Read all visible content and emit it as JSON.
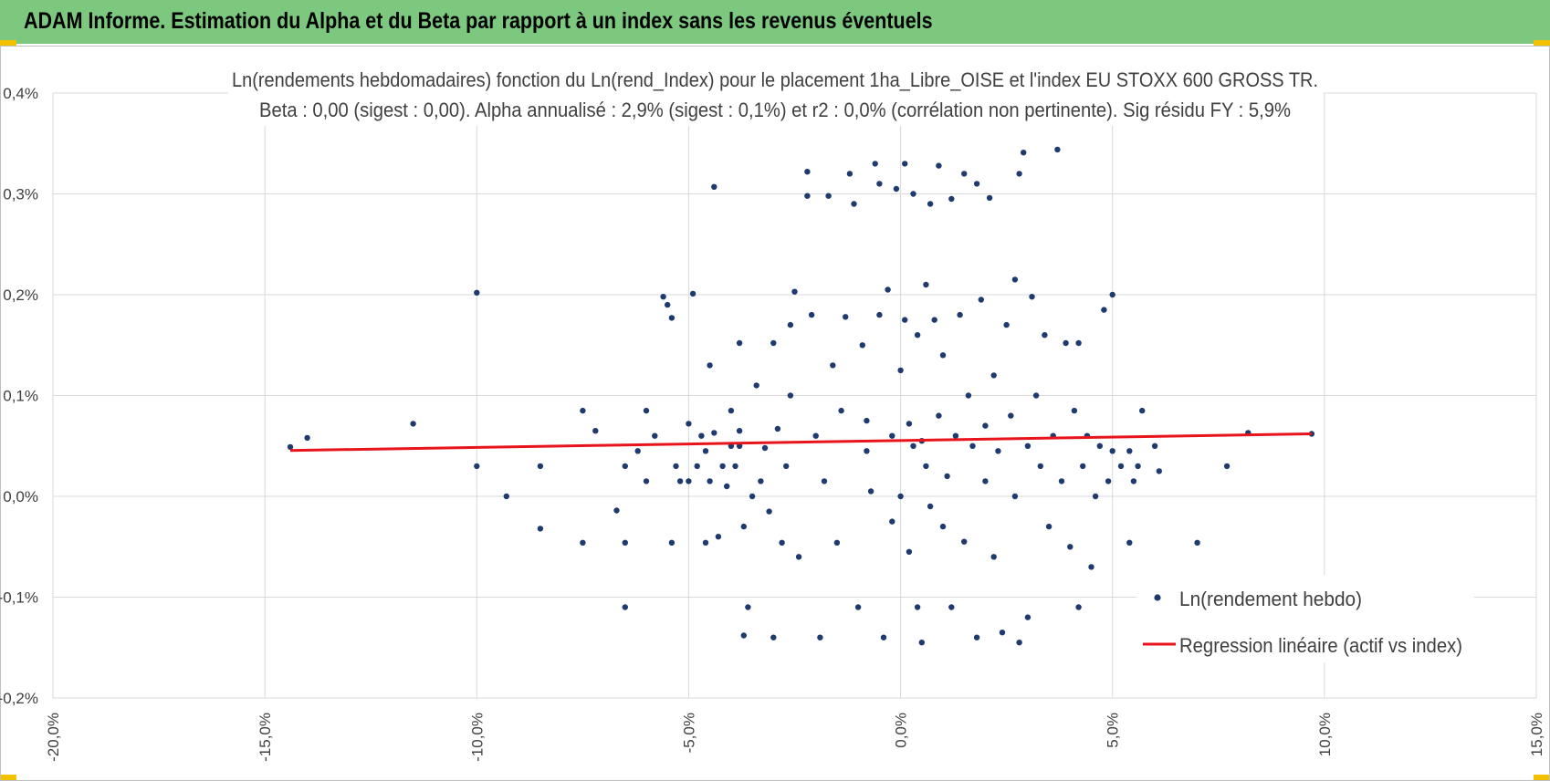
{
  "header": {
    "title": "ADAM Informe. Estimation du Alpha et du Beta par rapport à un index sans les revenus éventuels",
    "background": "#7dc87f",
    "corner_color": "#f2c200"
  },
  "chart_data": {
    "type": "scatter",
    "title": "Ln(rendements hebdomadaires) fonction du Ln(rend_Index) pour le placement 1ha_Libre_OISE et l'index EU STOXX 600 GROSS TR.",
    "subtitle": "Beta : 0,00 (sigest : 0,00).  Alpha annualisé : 2,9% (sigest : 0,1%) et r2 : 0,0% (corrélation non pertinente). Sig résidu FY : 5,9%",
    "xlabel": "",
    "ylabel": "",
    "xlim": [
      -0.2,
      0.15
    ],
    "ylim": [
      -0.002,
      0.004
    ],
    "x_ticks": [
      -0.2,
      -0.15,
      -0.1,
      -0.05,
      0.0,
      0.05,
      0.1,
      0.15
    ],
    "x_tick_labels": [
      "-20,0%",
      "-15,0%",
      "-10,0%",
      "-5,0%",
      "0,0%",
      "5,0%",
      "10,0%",
      "15,0%"
    ],
    "y_ticks": [
      -0.002,
      -0.001,
      0.0,
      0.001,
      0.002,
      0.003,
      0.004
    ],
    "y_tick_labels": [
      "-0,2%",
      "-0,1%",
      "0,0%",
      "0,1%",
      "0,2%",
      "0,3%",
      "0,4%"
    ],
    "grid": true,
    "legend_position": "bottom-right",
    "series": [
      {
        "name": "Ln(rendement hebdo)",
        "kind": "scatter",
        "color": "#1f3a6e",
        "points": [
          [
            -0.144,
            0.00049
          ],
          [
            -0.14,
            0.00058
          ],
          [
            -0.115,
            0.00072
          ],
          [
            -0.1,
            0.00202
          ],
          [
            -0.1,
            0.0003
          ],
          [
            -0.093,
            0.0
          ],
          [
            -0.085,
            -0.00032
          ],
          [
            -0.085,
            0.0003
          ],
          [
            -0.075,
            0.00085
          ],
          [
            -0.075,
            -0.00046
          ],
          [
            -0.072,
            0.00065
          ],
          [
            -0.067,
            -0.00014
          ],
          [
            -0.065,
            -0.0011
          ],
          [
            -0.065,
            -0.00046
          ],
          [
            -0.065,
            0.0003
          ],
          [
            -0.062,
            0.00045
          ],
          [
            -0.06,
            0.00085
          ],
          [
            -0.06,
            0.00015
          ],
          [
            -0.058,
            0.0006
          ],
          [
            -0.056,
            0.00198
          ],
          [
            -0.055,
            0.0019
          ],
          [
            -0.054,
            0.00177
          ],
          [
            -0.054,
            -0.00046
          ],
          [
            -0.053,
            0.0003
          ],
          [
            -0.052,
            0.00015
          ],
          [
            -0.05,
            0.00015
          ],
          [
            -0.05,
            0.00072
          ],
          [
            -0.049,
            0.00201
          ],
          [
            -0.048,
            0.0003
          ],
          [
            -0.047,
            0.0006
          ],
          [
            -0.046,
            0.00045
          ],
          [
            -0.045,
            0.0013
          ],
          [
            -0.045,
            0.00015
          ],
          [
            -0.046,
            -0.00046
          ],
          [
            -0.044,
            0.00307
          ],
          [
            -0.044,
            0.00063
          ],
          [
            -0.043,
            -0.0004
          ],
          [
            -0.042,
            0.0003
          ],
          [
            -0.041,
            0.0001
          ],
          [
            -0.04,
            0.00085
          ],
          [
            -0.04,
            0.0005
          ],
          [
            -0.039,
            0.0003
          ],
          [
            -0.038,
            0.00152
          ],
          [
            -0.038,
            0.00065
          ],
          [
            -0.038,
            0.0005
          ],
          [
            -0.037,
            -0.0003
          ],
          [
            -0.037,
            -0.00138
          ],
          [
            -0.036,
            -0.0011
          ],
          [
            -0.035,
            0.0
          ],
          [
            -0.034,
            0.0011
          ],
          [
            -0.033,
            0.00015
          ],
          [
            -0.032,
            0.00048
          ],
          [
            -0.031,
            -0.00015
          ],
          [
            -0.03,
            0.00152
          ],
          [
            -0.03,
            -0.0014
          ],
          [
            -0.029,
            0.00067
          ],
          [
            -0.028,
            -0.00046
          ],
          [
            -0.027,
            0.0003
          ],
          [
            -0.026,
            0.0017
          ],
          [
            -0.026,
            0.001
          ],
          [
            -0.025,
            0.00203
          ],
          [
            -0.024,
            -0.0006
          ],
          [
            -0.022,
            0.00298
          ],
          [
            -0.022,
            0.00322
          ],
          [
            -0.021,
            0.0018
          ],
          [
            -0.02,
            0.0006
          ],
          [
            -0.019,
            -0.0014
          ],
          [
            -0.018,
            0.00015
          ],
          [
            -0.017,
            0.00298
          ],
          [
            -0.016,
            0.0013
          ],
          [
            -0.015,
            -0.00046
          ],
          [
            -0.014,
            0.00085
          ],
          [
            -0.013,
            0.00178
          ],
          [
            -0.012,
            0.0032
          ],
          [
            -0.011,
            0.0029
          ],
          [
            -0.01,
            -0.0011
          ],
          [
            -0.009,
            0.0015
          ],
          [
            -0.008,
            0.00075
          ],
          [
            -0.008,
            0.00045
          ],
          [
            -0.007,
            5e-05
          ],
          [
            -0.006,
            0.0033
          ],
          [
            -0.005,
            0.0031
          ],
          [
            -0.005,
            0.0018
          ],
          [
            -0.004,
            -0.0014
          ],
          [
            -0.003,
            0.00205
          ],
          [
            -0.002,
            0.0006
          ],
          [
            -0.002,
            -0.00025
          ],
          [
            -0.001,
            0.00305
          ],
          [
            0.0,
            0.00125
          ],
          [
            0.0,
            0.0
          ],
          [
            0.001,
            0.0033
          ],
          [
            0.001,
            0.00175
          ],
          [
            0.002,
            -0.00055
          ],
          [
            0.002,
            0.00072
          ],
          [
            0.003,
            0.003
          ],
          [
            0.003,
            0.0005
          ],
          [
            0.004,
            -0.0011
          ],
          [
            0.004,
            0.0016
          ],
          [
            0.005,
            0.00055
          ],
          [
            0.005,
            -0.00145
          ],
          [
            0.006,
            0.0021
          ],
          [
            0.006,
            0.0003
          ],
          [
            0.007,
            0.0029
          ],
          [
            0.007,
            -0.0001
          ],
          [
            0.008,
            0.00175
          ],
          [
            0.009,
            0.00328
          ],
          [
            0.009,
            0.0008
          ],
          [
            0.01,
            -0.0003
          ],
          [
            0.01,
            0.0014
          ],
          [
            0.011,
            0.0002
          ],
          [
            0.012,
            0.00295
          ],
          [
            0.012,
            -0.0011
          ],
          [
            0.013,
            0.0006
          ],
          [
            0.014,
            0.0018
          ],
          [
            0.015,
            0.0032
          ],
          [
            0.015,
            -0.00045
          ],
          [
            0.016,
            0.001
          ],
          [
            0.017,
            0.0005
          ],
          [
            0.018,
            0.0031
          ],
          [
            0.018,
            -0.0014
          ],
          [
            0.019,
            0.00195
          ],
          [
            0.02,
            0.0007
          ],
          [
            0.02,
            0.00015
          ],
          [
            0.021,
            0.00296
          ],
          [
            0.022,
            0.0012
          ],
          [
            0.022,
            -0.0006
          ],
          [
            0.023,
            0.00045
          ],
          [
            0.024,
            -0.00135
          ],
          [
            0.025,
            0.0017
          ],
          [
            0.026,
            0.0008
          ],
          [
            0.027,
            0.00215
          ],
          [
            0.027,
            0.0
          ],
          [
            0.028,
            0.0032
          ],
          [
            0.028,
            -0.00145
          ],
          [
            0.029,
            0.00341
          ],
          [
            0.03,
            0.0005
          ],
          [
            0.03,
            -0.0012
          ],
          [
            0.031,
            0.00198
          ],
          [
            0.032,
            0.001
          ],
          [
            0.033,
            0.0003
          ],
          [
            0.034,
            0.0016
          ],
          [
            0.035,
            -0.0003
          ],
          [
            0.036,
            0.0006
          ],
          [
            0.037,
            0.00344
          ],
          [
            0.038,
            0.00015
          ],
          [
            0.039,
            0.00152
          ],
          [
            0.04,
            -0.0005
          ],
          [
            0.041,
            0.00085
          ],
          [
            0.042,
            0.00152
          ],
          [
            0.042,
            -0.0011
          ],
          [
            0.043,
            0.0003
          ],
          [
            0.044,
            0.0006
          ],
          [
            0.045,
            -0.0007
          ],
          [
            0.046,
            0.0
          ],
          [
            0.047,
            0.0005
          ],
          [
            0.048,
            0.00185
          ],
          [
            0.049,
            0.00015
          ],
          [
            0.05,
            0.002
          ],
          [
            0.05,
            0.00045
          ],
          [
            0.052,
            0.0003
          ],
          [
            0.054,
            0.00045
          ],
          [
            0.055,
            0.00015
          ],
          [
            0.054,
            -0.00046
          ],
          [
            0.056,
            0.0003
          ],
          [
            0.057,
            0.00085
          ],
          [
            0.06,
            0.0005
          ],
          [
            0.061,
            0.00025
          ],
          [
            0.07,
            -0.00046
          ],
          [
            0.077,
            0.0003
          ],
          [
            0.082,
            0.00063
          ],
          [
            0.097,
            0.00062
          ]
        ]
      },
      {
        "name": "Regression linéaire (actif vs index)",
        "kind": "line",
        "color": "#e8141b",
        "points": [
          [
            -0.144,
            0.000455
          ],
          [
            0.097,
            0.00062
          ]
        ]
      }
    ]
  }
}
